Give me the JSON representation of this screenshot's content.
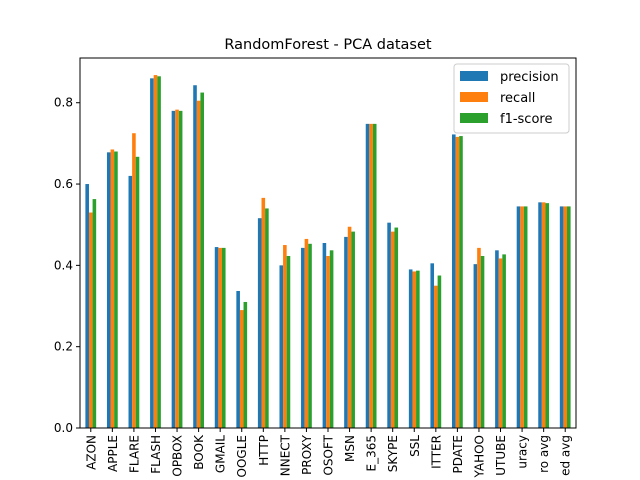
{
  "chart_data": {
    "type": "bar",
    "title": "RandomForest - PCA dataset",
    "xlabel": "",
    "ylabel": "",
    "ylim": [
      0,
      0.91
    ],
    "yticks": [
      0.0,
      0.2,
      0.4,
      0.6,
      0.8
    ],
    "ytick_labels": [
      "0.0",
      "0.2",
      "0.4",
      "0.6",
      "0.8"
    ],
    "grid": false,
    "legend_position": "top-right",
    "categories": [
      "AZON",
      "APPLE",
      "FLARE",
      "FLASH",
      "OPBOX",
      "BOOK",
      "GMAIL",
      "OOGLE",
      "HTTP",
      "NNECT",
      "PROXY",
      "OSOFT",
      "MSN",
      "E_365",
      "SKYPE",
      "SSL",
      "ITTER",
      "PDATE",
      "YAHOO",
      "UTUBE",
      "uracy",
      "ro avg",
      "ed avg"
    ],
    "series": [
      {
        "name": "precision",
        "color": "#1f77b4",
        "values": [
          0.6,
          0.678,
          0.62,
          0.86,
          0.78,
          0.843,
          0.445,
          0.337,
          0.516,
          0.4,
          0.443,
          0.455,
          0.47,
          0.748,
          0.505,
          0.39,
          0.405,
          0.722,
          0.403,
          0.437,
          0.545,
          0.555,
          0.545
        ]
      },
      {
        "name": "recall",
        "color": "#ff7f0e",
        "values": [
          0.53,
          0.685,
          0.725,
          0.868,
          0.783,
          0.805,
          0.443,
          0.29,
          0.566,
          0.45,
          0.465,
          0.423,
          0.495,
          0.748,
          0.483,
          0.385,
          0.35,
          0.716,
          0.443,
          0.417,
          0.545,
          0.555,
          0.545
        ]
      },
      {
        "name": "f1-score",
        "color": "#2ca02c",
        "values": [
          0.563,
          0.68,
          0.667,
          0.865,
          0.78,
          0.825,
          0.443,
          0.31,
          0.54,
          0.423,
          0.453,
          0.437,
          0.483,
          0.748,
          0.493,
          0.387,
          0.375,
          0.718,
          0.423,
          0.427,
          0.545,
          0.553,
          0.545
        ]
      }
    ]
  }
}
